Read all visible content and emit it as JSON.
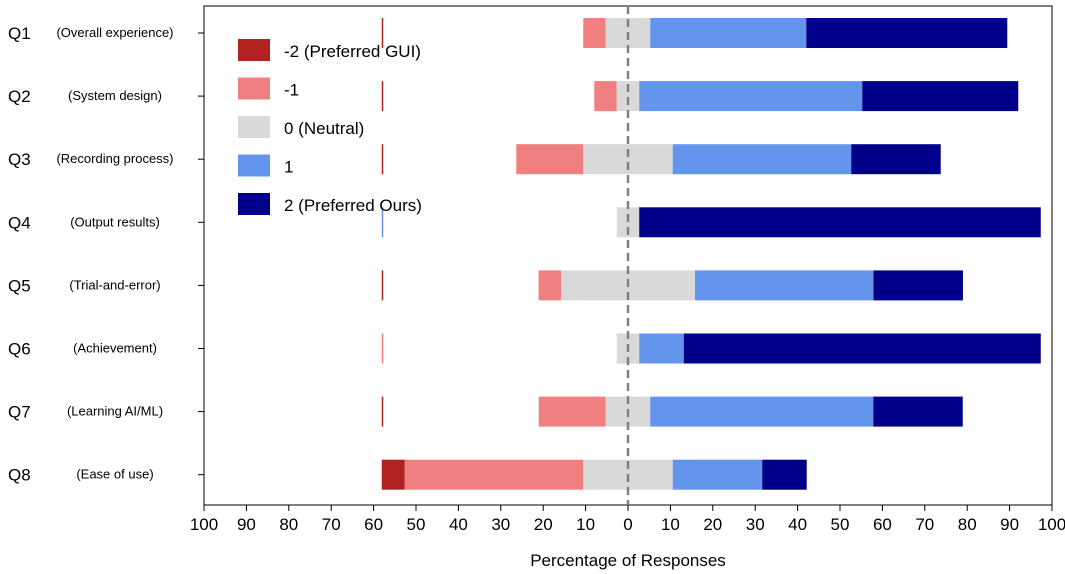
{
  "chart_data": {
    "type": "bar",
    "orientation": "horizontal",
    "stacked": "diverging",
    "xlabel": "Percentage of Responses",
    "xlim": [
      -100,
      100
    ],
    "xticks": [
      -100,
      -90,
      -80,
      -70,
      -60,
      -50,
      -40,
      -30,
      -20,
      -10,
      0,
      10,
      20,
      30,
      40,
      50,
      60,
      70,
      80,
      90,
      100
    ],
    "xtick_labels": [
      "100",
      "90",
      "80",
      "70",
      "60",
      "50",
      "40",
      "30",
      "20",
      "10",
      "0",
      "10",
      "20",
      "30",
      "40",
      "50",
      "60",
      "70",
      "80",
      "90",
      "100"
    ],
    "grid": false,
    "legend_position": "top-left",
    "reference_line": {
      "x": 0,
      "style": "dashed",
      "color": "#808080"
    },
    "categories": [
      {
        "id": "Q1",
        "label": "(Overall experience)"
      },
      {
        "id": "Q2",
        "label": "(System design)"
      },
      {
        "id": "Q3",
        "label": "(Recording process)"
      },
      {
        "id": "Q4",
        "label": "(Output results)"
      },
      {
        "id": "Q5",
        "label": "(Trial-and-error)"
      },
      {
        "id": "Q6",
        "label": "(Achievement)"
      },
      {
        "id": "Q7",
        "label": "(Learning AI/ML)"
      },
      {
        "id": "Q8",
        "label": "(Ease of use)"
      }
    ],
    "series": [
      {
        "name": "-2 (Preferred GUI)",
        "color": "#b22222",
        "values": [
          0,
          0,
          0,
          0,
          0,
          0,
          0,
          5.3
        ]
      },
      {
        "name": "-1",
        "color": "#f08080",
        "values": [
          5.3,
          5.3,
          15.8,
          0,
          5.3,
          0,
          15.8,
          42.1
        ]
      },
      {
        "name": "0 (Neutral)",
        "color": "#d9d9d9",
        "values": [
          10.5,
          5.3,
          21.1,
          5.3,
          31.6,
          5.3,
          10.5,
          21.1
        ]
      },
      {
        "name": "1",
        "color": "#6495ed",
        "values": [
          36.8,
          52.6,
          42.1,
          0,
          42.1,
          10.5,
          52.6,
          21.1
        ]
      },
      {
        "name": "2 (Preferred Ours)",
        "color": "#00008b",
        "values": [
          47.4,
          36.8,
          21.1,
          94.7,
          21.1,
          84.2,
          21.1,
          10.5
        ]
      }
    ],
    "left_marker": {
      "x": -57.9,
      "colors": [
        "#b22222",
        "#b22222",
        "#b22222",
        "#6495ed",
        "#b22222",
        "#f08080",
        "#b22222",
        "#b22222"
      ]
    }
  }
}
